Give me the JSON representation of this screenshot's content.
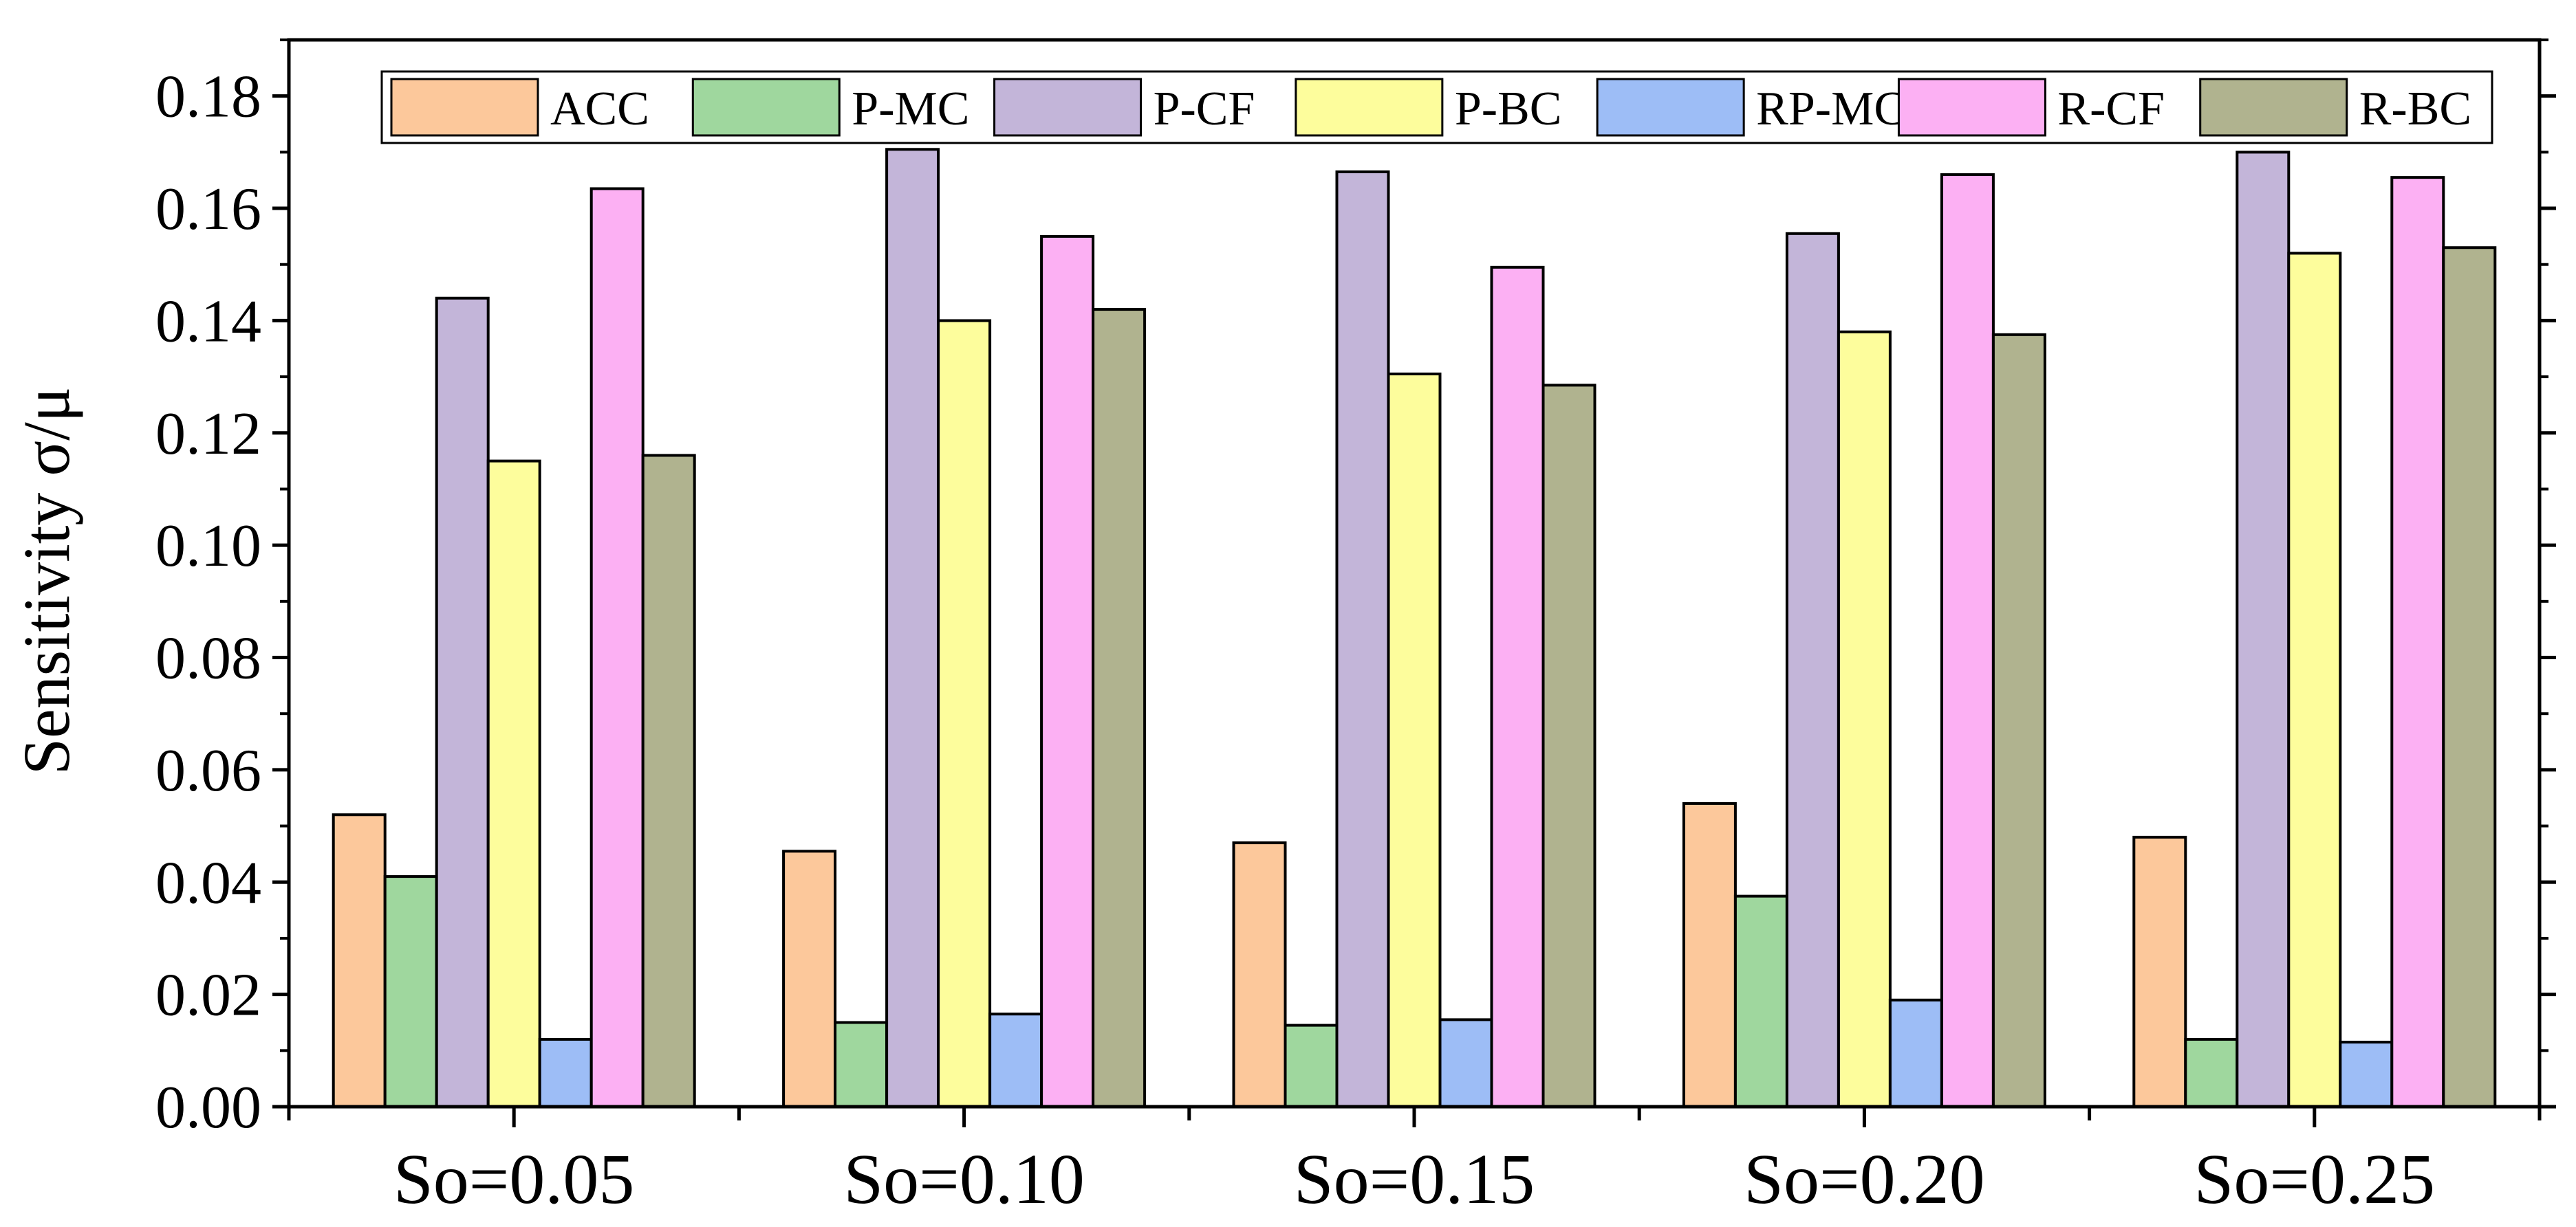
{
  "chart_data": {
    "type": "bar",
    "title": "",
    "xlabel": "",
    "ylabel": "Sensitivity  σ/μ",
    "ylim": [
      0,
      0.19
    ],
    "yticks": [
      "0.00",
      "0.02",
      "0.04",
      "0.06",
      "0.08",
      "0.10",
      "0.12",
      "0.14",
      "0.16",
      "0.18"
    ],
    "ytick_values": [
      0,
      0.02,
      0.04,
      0.06,
      0.08,
      0.1,
      0.12,
      0.14,
      0.16,
      0.18
    ],
    "categories": [
      "So=0.05",
      "So=0.10",
      "So=0.15",
      "So=0.20",
      "So=0.25"
    ],
    "legend_position": "top",
    "series": [
      {
        "name": "ACC",
        "color": "#fcc89b",
        "values": [
          0.052,
          0.0455,
          0.047,
          0.054,
          0.048
        ]
      },
      {
        "name": "P-MC",
        "color": "#9fd79e",
        "values": [
          0.041,
          0.015,
          0.0145,
          0.0375,
          0.012
        ]
      },
      {
        "name": "P-CF",
        "color": "#c3b5d9",
        "values": [
          0.144,
          0.1705,
          0.1665,
          0.1555,
          0.17
        ]
      },
      {
        "name": "P-BC",
        "color": "#fdfd9c",
        "values": [
          0.115,
          0.14,
          0.1305,
          0.138,
          0.152
        ]
      },
      {
        "name": "RP-MC",
        "color": "#9dbdf6",
        "values": [
          0.012,
          0.0165,
          0.0155,
          0.019,
          0.0115
        ]
      },
      {
        "name": "R-CF",
        "color": "#fcb0f3",
        "values": [
          0.1635,
          0.155,
          0.1495,
          0.166,
          0.1655
        ]
      },
      {
        "name": "R-BC",
        "color": "#b0b38f",
        "values": [
          0.116,
          0.142,
          0.1285,
          0.1375,
          0.153
        ]
      }
    ]
  }
}
